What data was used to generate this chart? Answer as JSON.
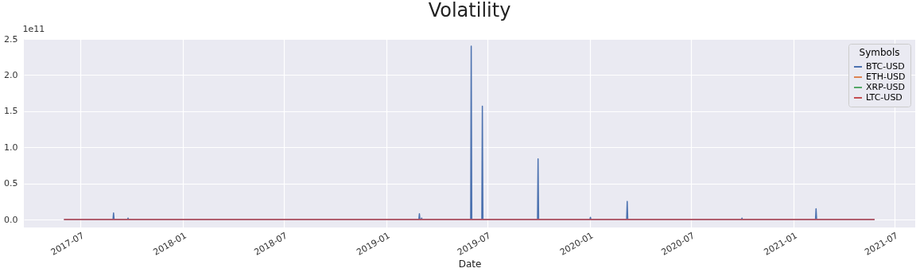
{
  "chart_data": {
    "type": "line",
    "title": "Volatility",
    "xlabel": "Date",
    "legend_title": "Symbols",
    "annotations": [
      "1e11"
    ],
    "series": [
      {
        "name": "BTC-USD",
        "color": "#4c72b0",
        "x": [
          "2017-06-01",
          "2017-08-28",
          "2017-08-29",
          "2017-08-30",
          "2017-09-23",
          "2017-09-24",
          "2017-09-25",
          "2019-02-28",
          "2019-03-01",
          "2019-03-02",
          "2019-03-04",
          "2019-03-05",
          "2019-03-06",
          "2019-06-01",
          "2019-06-02",
          "2019-06-03",
          "2019-06-21",
          "2019-06-22",
          "2019-06-23",
          "2019-09-29",
          "2019-09-30",
          "2019-10-01",
          "2020-01-01",
          "2020-01-02",
          "2020-01-03",
          "2020-03-07",
          "2020-03-08",
          "2020-03-09",
          "2020-09-29",
          "2020-09-30",
          "2020-10-01",
          "2021-02-09",
          "2021-02-10",
          "2021-02-11",
          "2021-05-26"
        ],
        "values": [
          0,
          0,
          0.09,
          0,
          0,
          0.02,
          0,
          0,
          0.08,
          0,
          0,
          0.02,
          0,
          0,
          2.4,
          0,
          0,
          1.57,
          0,
          0,
          0.84,
          0,
          0,
          0.03,
          0,
          0,
          0.25,
          0,
          0,
          0.02,
          0,
          0,
          0.15,
          0,
          0
        ]
      },
      {
        "name": "ETH-USD",
        "color": "#dd8452"
      },
      {
        "name": "XRP-USD",
        "color": "#55a868"
      },
      {
        "name": "LTC-USD",
        "color": "#c44e52",
        "x": [
          "2017-06-01",
          "2021-05-26"
        ],
        "values": [
          0,
          0
        ]
      }
    ],
    "xlim": [
      "2017-03-21",
      "2021-08-07"
    ],
    "xticks": [
      {
        "value": "2017-07-01",
        "label": "2017-07"
      },
      {
        "value": "2018-01-01",
        "label": "2018-01"
      },
      {
        "value": "2018-07-01",
        "label": "2018-07"
      },
      {
        "value": "2019-01-01",
        "label": "2019-01"
      },
      {
        "value": "2019-07-01",
        "label": "2019-07"
      },
      {
        "value": "2020-01-01",
        "label": "2020-01"
      },
      {
        "value": "2020-07-01",
        "label": "2020-07"
      },
      {
        "value": "2021-01-01",
        "label": "2021-01"
      },
      {
        "value": "2021-07-01",
        "label": "2021-07"
      }
    ],
    "ylim": [
      -0.11,
      2.5
    ],
    "yticks": [
      {
        "value": 0,
        "label": "0.0"
      },
      0.5,
      {
        "value": 1,
        "label": "1.0"
      },
      1.5,
      {
        "value": 2,
        "label": "2.0"
      },
      2.5
    ],
    "grid": true,
    "legend": "top right",
    "marker": "none",
    "line_style": "solid"
  }
}
